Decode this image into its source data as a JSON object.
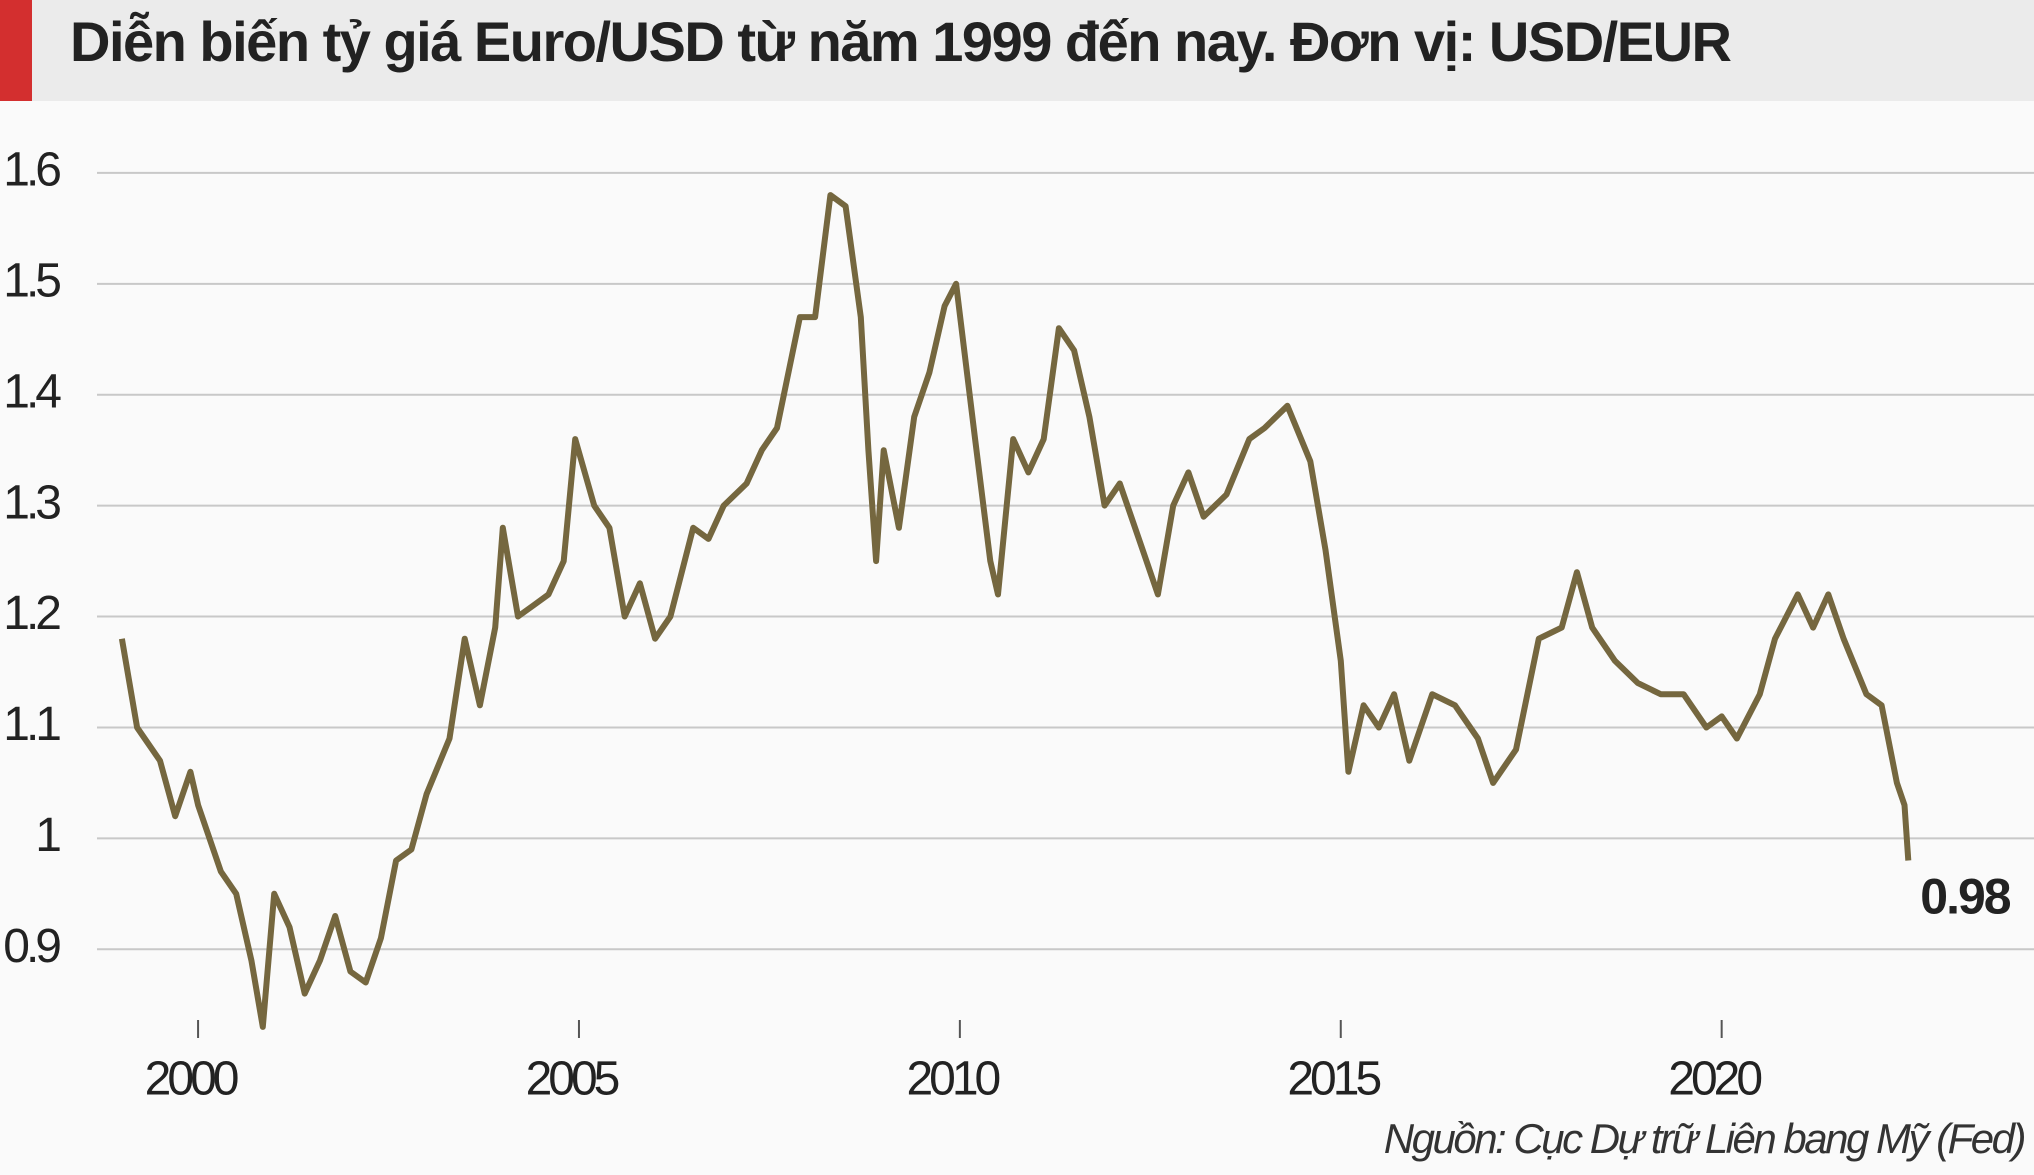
{
  "chart_data": {
    "type": "line",
    "title": "Diễn biến tỷ giá Euro/USD từ năm 1999 đến nay. Đơn vị: USD/EUR",
    "source": "Nguồn: Cục Dự trữ Liên bang Mỹ (Fed)",
    "color": "#75673f",
    "grid": true,
    "x": [
      1999.0,
      1999.2,
      1999.5,
      1999.7,
      1999.9,
      2000.0,
      2000.3,
      2000.5,
      2000.7,
      2000.85,
      2001.0,
      2001.2,
      2001.4,
      2001.6,
      2001.8,
      2002.0,
      2002.2,
      2002.4,
      2002.6,
      2002.8,
      2003.0,
      2003.3,
      2003.5,
      2003.7,
      2003.9,
      2004.0,
      2004.2,
      2004.4,
      2004.6,
      2004.8,
      2004.95,
      2005.2,
      2005.4,
      2005.6,
      2005.8,
      2006.0,
      2006.2,
      2006.5,
      2006.7,
      2006.9,
      2007.2,
      2007.4,
      2007.6,
      2007.9,
      2008.1,
      2008.3,
      2008.5,
      2008.7,
      2008.8,
      2008.9,
      2009.0,
      2009.2,
      2009.4,
      2009.6,
      2009.8,
      2009.95,
      2010.2,
      2010.4,
      2010.5,
      2010.7,
      2010.9,
      2011.1,
      2011.3,
      2011.5,
      2011.7,
      2011.9,
      2012.1,
      2012.4,
      2012.6,
      2012.8,
      2013.0,
      2013.2,
      2013.5,
      2013.8,
      2014.0,
      2014.3,
      2014.6,
      2014.8,
      2015.0,
      2015.1,
      2015.3,
      2015.5,
      2015.7,
      2015.9,
      2016.2,
      2016.5,
      2016.8,
      2017.0,
      2017.3,
      2017.6,
      2017.9,
      2018.1,
      2018.3,
      2018.6,
      2018.9,
      2019.2,
      2019.5,
      2019.8,
      2020.0,
      2020.2,
      2020.5,
      2020.7,
      2021.0,
      2021.2,
      2021.4,
      2021.6,
      2021.9,
      2022.1,
      2022.3,
      2022.4,
      2022.45
    ],
    "values": [
      1.18,
      1.1,
      1.07,
      1.02,
      1.06,
      1.03,
      0.97,
      0.95,
      0.89,
      0.83,
      0.95,
      0.92,
      0.86,
      0.89,
      0.93,
      0.88,
      0.87,
      0.91,
      0.98,
      0.99,
      1.04,
      1.09,
      1.18,
      1.12,
      1.19,
      1.28,
      1.2,
      1.21,
      1.22,
      1.25,
      1.36,
      1.3,
      1.28,
      1.2,
      1.23,
      1.18,
      1.2,
      1.28,
      1.27,
      1.3,
      1.32,
      1.35,
      1.37,
      1.47,
      1.47,
      1.58,
      1.57,
      1.47,
      1.35,
      1.25,
      1.35,
      1.28,
      1.38,
      1.42,
      1.48,
      1.5,
      1.36,
      1.25,
      1.22,
      1.36,
      1.33,
      1.36,
      1.46,
      1.44,
      1.38,
      1.3,
      1.32,
      1.26,
      1.22,
      1.3,
      1.33,
      1.29,
      1.31,
      1.36,
      1.37,
      1.39,
      1.34,
      1.26,
      1.16,
      1.06,
      1.12,
      1.1,
      1.13,
      1.07,
      1.13,
      1.12,
      1.09,
      1.05,
      1.08,
      1.18,
      1.19,
      1.24,
      1.19,
      1.16,
      1.14,
      1.13,
      1.13,
      1.1,
      1.11,
      1.09,
      1.13,
      1.18,
      1.22,
      1.19,
      1.22,
      1.18,
      1.13,
      1.12,
      1.05,
      1.03,
      0.98
    ],
    "xlim": [
      1997.4,
      2024.1
    ],
    "ylim": [
      0.82,
      1.645
    ],
    "xticks": [
      2000,
      2005,
      2010,
      2015,
      2020
    ],
    "yticks": [
      0.9,
      1,
      1.1,
      1.2,
      1.3,
      1.4,
      1.5,
      1.6
    ]
  }
}
